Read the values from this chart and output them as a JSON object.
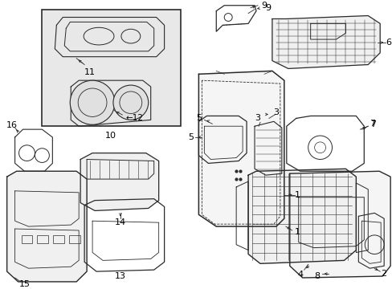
{
  "background_color": "#ffffff",
  "line_color": "#2a2a2a",
  "text_color": "#000000",
  "fig_width": 4.89,
  "fig_height": 3.6,
  "dpi": 100,
  "font_size": 7.5,
  "inset_bg": "#e8e8e8"
}
